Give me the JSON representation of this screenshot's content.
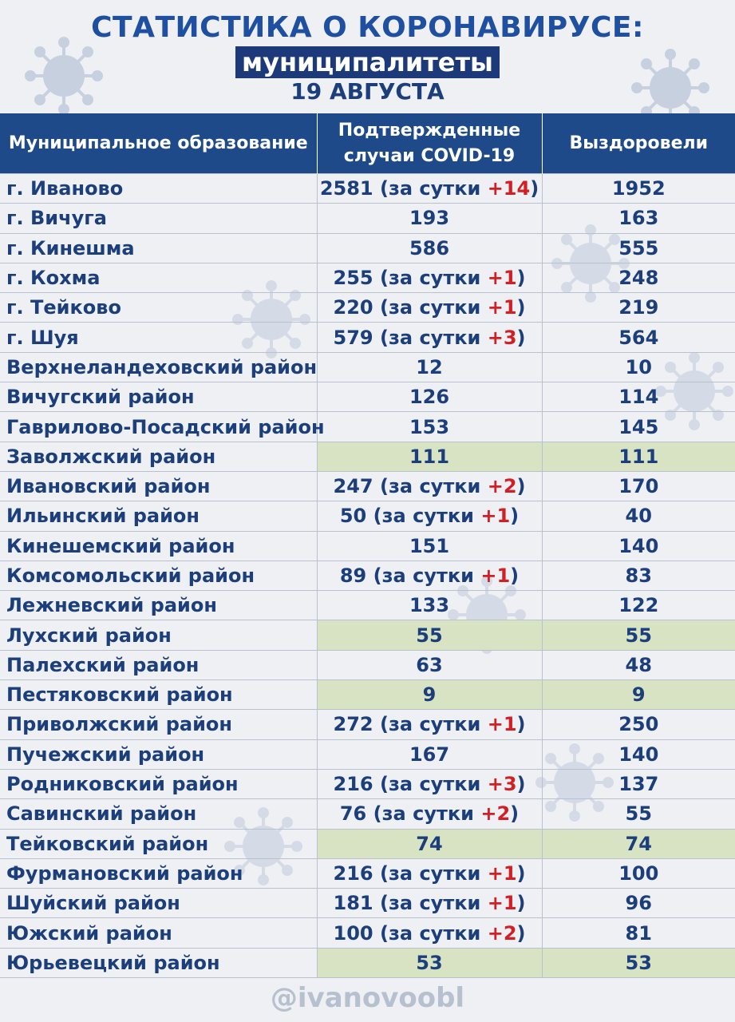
{
  "header": {
    "title": "СТАТИСТИКА О КОРОНАВИРУСЕ:",
    "subtitle": "муниципалитеты",
    "date": "19 АВГУСТА"
  },
  "table": {
    "columns": [
      "Муниципальное образование",
      "Подтвержденные случаи COVID-19",
      "Выздоровели"
    ],
    "rows": [
      {
        "name": "г. Иваново",
        "cases": "2581",
        "daily_prefix": "(за сутки ",
        "daily": "+14",
        "daily_suffix": ")",
        "recovered": "1952",
        "highlight": false
      },
      {
        "name": "г. Вичуга",
        "cases": "193",
        "recovered": "163",
        "highlight": false
      },
      {
        "name": "г. Кинешма",
        "cases": "586",
        "recovered": "555",
        "highlight": false
      },
      {
        "name": "г. Кохма",
        "cases": "255",
        "daily_prefix": "(за сутки ",
        "daily": "+1",
        "daily_suffix": ")",
        "recovered": "248",
        "highlight": false
      },
      {
        "name": "г. Тейково",
        "cases": "220",
        "daily_prefix": "(за сутки ",
        "daily": "+1",
        "daily_suffix": ")",
        "recovered": "219",
        "highlight": false
      },
      {
        "name": "г. Шуя",
        "cases": "579",
        "daily_prefix": "(за сутки ",
        "daily": "+3",
        "daily_suffix": ")",
        "recovered": "564",
        "highlight": false
      },
      {
        "name": "Верхнеландеховский район",
        "cases": "12",
        "recovered": "10",
        "highlight": false
      },
      {
        "name": "Вичугский район",
        "cases": "126",
        "recovered": "114",
        "highlight": false
      },
      {
        "name": "Гаврилово-Посадский район",
        "cases": "153",
        "recovered": "145",
        "highlight": false
      },
      {
        "name": "Заволжский район",
        "cases": "111",
        "recovered": "111",
        "highlight": true
      },
      {
        "name": "Ивановский район",
        "cases": "247",
        "daily_prefix": "(за сутки ",
        "daily": "+2",
        "daily_suffix": ")",
        "recovered": "170",
        "highlight": false
      },
      {
        "name": "Ильинский район",
        "cases": "50",
        "daily_prefix": "(за сутки ",
        "daily": "+1",
        "daily_suffix": ")",
        "recovered": "40",
        "highlight": false
      },
      {
        "name": "Кинешемский район",
        "cases": "151",
        "recovered": "140",
        "highlight": false
      },
      {
        "name": "Комсомольский район",
        "cases": "89",
        "daily_prefix": "(за сутки ",
        "daily": "+1",
        "daily_suffix": ")",
        "recovered": "83",
        "highlight": false
      },
      {
        "name": "Лежневский район",
        "cases": "133",
        "recovered": "122",
        "highlight": false
      },
      {
        "name": "Лухский район",
        "cases": "55",
        "recovered": "55",
        "highlight": true
      },
      {
        "name": "Палехский район",
        "cases": "63",
        "recovered": "48",
        "highlight": false
      },
      {
        "name": "Пестяковский район",
        "cases": "9",
        "recovered": "9",
        "highlight": true
      },
      {
        "name": "Приволжский район",
        "cases": "272",
        "daily_prefix": "(за сутки ",
        "daily": "+1",
        "daily_suffix": ")",
        "recovered": "250",
        "highlight": false
      },
      {
        "name": "Пучежский район",
        "cases": "167",
        "recovered": "140",
        "highlight": false
      },
      {
        "name": "Родниковский район",
        "cases": "216",
        "daily_prefix": "(за сутки ",
        "daily": "+3",
        "daily_suffix": ")",
        "recovered": "137",
        "highlight": false
      },
      {
        "name": "Савинский район",
        "cases": "76",
        "daily_prefix": "(за сутки ",
        "daily": "+2",
        "daily_suffix": ")",
        "recovered": "55",
        "highlight": false
      },
      {
        "name": "Тейковский район",
        "cases": "74",
        "recovered": "74",
        "highlight": true
      },
      {
        "name": "Фурмановский район",
        "cases": "216",
        "daily_prefix": "(за сутки ",
        "daily": "+1",
        "daily_suffix": ")",
        "recovered": "100",
        "highlight": false
      },
      {
        "name": "Шуйский район",
        "cases": "181",
        "daily_prefix": "(за сутки ",
        "daily": "+1",
        "daily_suffix": ")",
        "recovered": "96",
        "highlight": false
      },
      {
        "name": "Южский район",
        "cases": "100",
        "daily_prefix": "(за сутки ",
        "daily": "+2",
        "daily_suffix": ")",
        "recovered": "81",
        "highlight": false
      },
      {
        "name": "Юрьевецкий район",
        "cases": "53",
        "recovered": "53",
        "highlight": true
      }
    ]
  },
  "footer": {
    "handle": "@ivanovoobl"
  },
  "colors": {
    "header_bg": "#1f4a8a",
    "text": "#1c3f7c",
    "increase": "#d21f26",
    "highlight": "#d8e3c3"
  },
  "decor": {
    "background_icon": "virus-icon"
  }
}
